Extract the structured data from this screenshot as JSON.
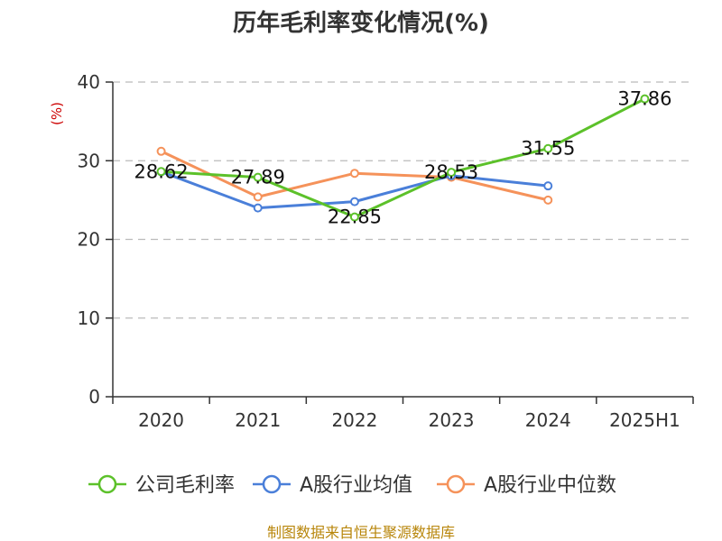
{
  "chart_data": {
    "type": "line",
    "title": "历年毛利率变化情况(%)",
    "ylabel": "(%)",
    "categories": [
      "2020",
      "2021",
      "2022",
      "2023",
      "2024",
      "2025H1"
    ],
    "ylim": [
      0,
      40
    ],
    "yticks": [
      0,
      10,
      20,
      30,
      40
    ],
    "grid": true,
    "legend_position": "bottom",
    "series": [
      {
        "name": "公司毛利率",
        "color": "#5cc12a",
        "values": [
          28.62,
          27.89,
          22.85,
          28.53,
          31.55,
          37.86
        ],
        "labels": [
          "28.62",
          "27.89",
          "22.85",
          "28.53",
          "31.55",
          "37.86"
        ]
      },
      {
        "name": "A股行业均值",
        "color": "#4a7fd9",
        "values": [
          28.6,
          24.0,
          24.8,
          28.1,
          26.8,
          null
        ]
      },
      {
        "name": "A股行业中位数",
        "color": "#f5925a",
        "values": [
          31.2,
          25.4,
          28.4,
          27.9,
          25.0,
          null
        ]
      }
    ],
    "source": "制图数据来自恒生聚源数据库"
  }
}
